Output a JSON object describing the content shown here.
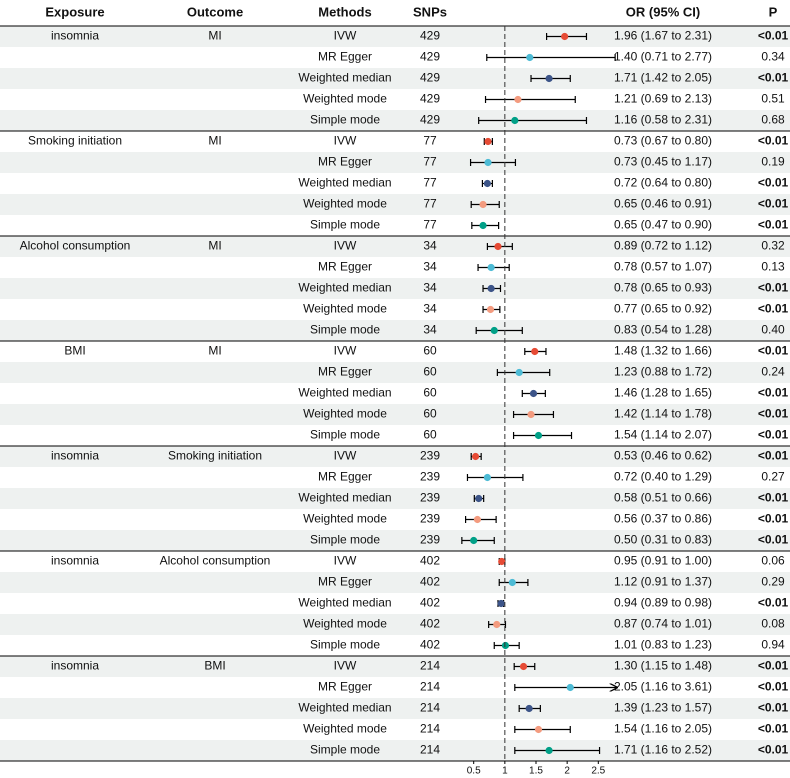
{
  "chart_data": {
    "type": "forest",
    "headers": [
      "Exposure",
      "Outcome",
      "Methods",
      "SNPs",
      "OR (95% CI)",
      "P"
    ],
    "xlim": [
      0.2,
      2.8
    ],
    "xticks": [
      0.5,
      1,
      1.5,
      2,
      2.5
    ],
    "reference": 1,
    "colors": [
      "#e64b35",
      "#4dbbd5",
      "#3c5488",
      "#f39b7f",
      "#00a087"
    ],
    "groups": [
      {
        "exposure": "insomnia",
        "outcome": "MI",
        "rows": [
          {
            "method": "IVW",
            "snps": 429,
            "or": 1.96,
            "lower": 1.67,
            "upper": 2.31,
            "or_label": "1.96 (1.67 to 2.31)",
            "p": "<0.01"
          },
          {
            "method": "MR Egger",
            "snps": 429,
            "or": 1.4,
            "lower": 0.71,
            "upper": 2.77,
            "or_label": "1.40 (0.71 to 2.77)",
            "p": "0.34"
          },
          {
            "method": "Weighted median",
            "snps": 429,
            "or": 1.71,
            "lower": 1.42,
            "upper": 2.05,
            "or_label": "1.71 (1.42 to 2.05)",
            "p": "<0.01"
          },
          {
            "method": "Weighted mode",
            "snps": 429,
            "or": 1.21,
            "lower": 0.69,
            "upper": 2.13,
            "or_label": "1.21 (0.69 to 2.13)",
            "p": "0.51"
          },
          {
            "method": "Simple mode",
            "snps": 429,
            "or": 1.16,
            "lower": 0.58,
            "upper": 2.31,
            "or_label": "1.16 (0.58 to 2.31)",
            "p": "0.68"
          }
        ]
      },
      {
        "exposure": "Smoking initiation",
        "outcome": "MI",
        "rows": [
          {
            "method": "IVW",
            "snps": 77,
            "or": 0.73,
            "lower": 0.67,
            "upper": 0.8,
            "or_label": "0.73 (0.67 to 0.80)",
            "p": "<0.01"
          },
          {
            "method": "MR Egger",
            "snps": 77,
            "or": 0.73,
            "lower": 0.45,
            "upper": 1.17,
            "or_label": "0.73 (0.45 to 1.17)",
            "p": "0.19"
          },
          {
            "method": "Weighted median",
            "snps": 77,
            "or": 0.72,
            "lower": 0.64,
            "upper": 0.8,
            "or_label": "0.72 (0.64 to 0.80)",
            "p": "<0.01"
          },
          {
            "method": "Weighted mode",
            "snps": 77,
            "or": 0.65,
            "lower": 0.46,
            "upper": 0.91,
            "or_label": "0.65 (0.46 to 0.91)",
            "p": "<0.01"
          },
          {
            "method": "Simple mode",
            "snps": 77,
            "or": 0.65,
            "lower": 0.47,
            "upper": 0.9,
            "or_label": "0.65 (0.47 to 0.90)",
            "p": "<0.01"
          }
        ]
      },
      {
        "exposure": "Alcohol consumption",
        "outcome": "MI",
        "rows": [
          {
            "method": "IVW",
            "snps": 34,
            "or": 0.89,
            "lower": 0.72,
            "upper": 1.12,
            "or_label": "0.89 (0.72 to 1.12)",
            "p": "0.32"
          },
          {
            "method": "MR Egger",
            "snps": 34,
            "or": 0.78,
            "lower": 0.57,
            "upper": 1.07,
            "or_label": "0.78 (0.57 to 1.07)",
            "p": "0.13"
          },
          {
            "method": "Weighted median",
            "snps": 34,
            "or": 0.78,
            "lower": 0.65,
            "upper": 0.93,
            "or_label": "0.78 (0.65 to 0.93)",
            "p": "<0.01"
          },
          {
            "method": "Weighted mode",
            "snps": 34,
            "or": 0.77,
            "lower": 0.65,
            "upper": 0.92,
            "or_label": "0.77 (0.65 to 0.92)",
            "p": "<0.01"
          },
          {
            "method": "Simple mode",
            "snps": 34,
            "or": 0.83,
            "lower": 0.54,
            "upper": 1.28,
            "or_label": "0.83 (0.54 to 1.28)",
            "p": "0.40"
          }
        ]
      },
      {
        "exposure": "BMI",
        "outcome": "MI",
        "rows": [
          {
            "method": "IVW",
            "snps": 60,
            "or": 1.48,
            "lower": 1.32,
            "upper": 1.66,
            "or_label": "1.48 (1.32 to 1.66)",
            "p": "<0.01"
          },
          {
            "method": "MR Egger",
            "snps": 60,
            "or": 1.23,
            "lower": 0.88,
            "upper": 1.72,
            "or_label": "1.23 (0.88 to 1.72)",
            "p": "0.24"
          },
          {
            "method": "Weighted median",
            "snps": 60,
            "or": 1.46,
            "lower": 1.28,
            "upper": 1.65,
            "or_label": "1.46 (1.28 to 1.65)",
            "p": "<0.01"
          },
          {
            "method": "Weighted mode",
            "snps": 60,
            "or": 1.42,
            "lower": 1.14,
            "upper": 1.78,
            "or_label": "1.42 (1.14 to 1.78)",
            "p": "<0.01"
          },
          {
            "method": "Simple mode",
            "snps": 60,
            "or": 1.54,
            "lower": 1.14,
            "upper": 2.07,
            "or_label": "1.54 (1.14 to 2.07)",
            "p": "<0.01"
          }
        ]
      },
      {
        "exposure": "insomnia",
        "outcome": "Smoking initiation",
        "rows": [
          {
            "method": "IVW",
            "snps": 239,
            "or": 0.53,
            "lower": 0.46,
            "upper": 0.62,
            "or_label": "0.53 (0.46 to 0.62)",
            "p": "<0.01"
          },
          {
            "method": "MR Egger",
            "snps": 239,
            "or": 0.72,
            "lower": 0.4,
            "upper": 1.29,
            "or_label": "0.72 (0.40 to 1.29)",
            "p": "0.27"
          },
          {
            "method": "Weighted median",
            "snps": 239,
            "or": 0.58,
            "lower": 0.51,
            "upper": 0.66,
            "or_label": "0.58 (0.51 to 0.66)",
            "p": "<0.01"
          },
          {
            "method": "Weighted mode",
            "snps": 239,
            "or": 0.56,
            "lower": 0.37,
            "upper": 0.86,
            "or_label": "0.56 (0.37 to 0.86)",
            "p": "<0.01"
          },
          {
            "method": "Simple mode",
            "snps": 239,
            "or": 0.5,
            "lower": 0.31,
            "upper": 0.83,
            "or_label": "0.50 (0.31 to 0.83)",
            "p": "<0.01"
          }
        ]
      },
      {
        "exposure": "insomnia",
        "outcome": "Alcohol consumption",
        "rows": [
          {
            "method": "IVW",
            "snps": 402,
            "or": 0.95,
            "lower": 0.91,
            "upper": 1.0,
            "or_label": "0.95 (0.91 to 1.00)",
            "p": "0.06"
          },
          {
            "method": "MR Egger",
            "snps": 402,
            "or": 1.12,
            "lower": 0.91,
            "upper": 1.37,
            "or_label": "1.12 (0.91 to 1.37)",
            "p": "0.29"
          },
          {
            "method": "Weighted median",
            "snps": 402,
            "or": 0.94,
            "lower": 0.89,
            "upper": 0.98,
            "or_label": "0.94 (0.89 to 0.98)",
            "p": "<0.01"
          },
          {
            "method": "Weighted mode",
            "snps": 402,
            "or": 0.87,
            "lower": 0.74,
            "upper": 1.01,
            "or_label": "0.87 (0.74 to 1.01)",
            "p": "0.08"
          },
          {
            "method": "Simple mode",
            "snps": 402,
            "or": 1.01,
            "lower": 0.83,
            "upper": 1.23,
            "or_label": "1.01 (0.83 to 1.23)",
            "p": "0.94"
          }
        ]
      },
      {
        "exposure": "insomnia",
        "outcome": "BMI",
        "rows": [
          {
            "method": "IVW",
            "snps": 214,
            "or": 1.3,
            "lower": 1.15,
            "upper": 1.48,
            "or_label": "1.30 (1.15 to 1.48)",
            "p": "<0.01"
          },
          {
            "method": "MR Egger",
            "snps": 214,
            "or": 2.05,
            "lower": 1.16,
            "upper": 3.61,
            "or_label": "2.05 (1.16 to 3.61)",
            "p": "<0.01"
          },
          {
            "method": "Weighted median",
            "snps": 214,
            "or": 1.39,
            "lower": 1.23,
            "upper": 1.57,
            "or_label": "1.39 (1.23 to 1.57)",
            "p": "<0.01"
          },
          {
            "method": "Weighted mode",
            "snps": 214,
            "or": 1.54,
            "lower": 1.16,
            "upper": 2.05,
            "or_label": "1.54 (1.16 to 2.05)",
            "p": "<0.01"
          },
          {
            "method": "Simple mode",
            "snps": 214,
            "or": 1.71,
            "lower": 1.16,
            "upper": 2.52,
            "or_label": "1.71 (1.16 to 2.52)",
            "p": "<0.01"
          }
        ]
      }
    ]
  }
}
